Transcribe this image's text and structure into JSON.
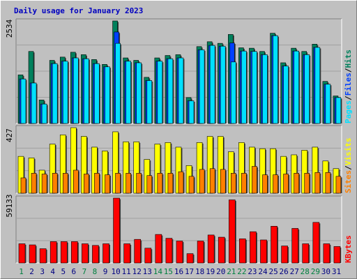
{
  "title": "Daily usage for January 2023",
  "colors": {
    "background": "#c0c0c0",
    "panel": "#c0c0c0",
    "title": "#0000c0",
    "hits": "#00805c",
    "files": "#0040ff",
    "pages": "#00e0ff",
    "visits": "#ffff00",
    "sites": "#ff8000",
    "kbytes": "#ff0000",
    "weekend": "#008040",
    "weekday": "#000080",
    "separator": "#000000"
  },
  "chart_data": [
    {
      "type": "bar",
      "panel": "hits-files-pages",
      "y_max_label": "2534",
      "ylim": [
        0,
        2534
      ],
      "legend": [
        {
          "label": "Pages",
          "color": "#00e0ff"
        },
        {
          "label": "/",
          "color": "#000000"
        },
        {
          "label": "Files",
          "color": "#0040ff"
        },
        {
          "label": "/",
          "color": "#000000"
        },
        {
          "label": "Hits",
          "color": "#00805c"
        }
      ],
      "categories": [
        1,
        2,
        3,
        4,
        5,
        6,
        7,
        8,
        9,
        10,
        11,
        12,
        13,
        14,
        15,
        16,
        17,
        18,
        19,
        20,
        21,
        22,
        23,
        24,
        25,
        26,
        27,
        28,
        29,
        30,
        31
      ],
      "series": [
        {
          "name": "Hits",
          "values": [
            1200,
            1780,
            580,
            1560,
            1640,
            1760,
            1700,
            1580,
            1460,
            2534,
            1620,
            1560,
            1140,
            1620,
            1680,
            1700,
            640,
            1900,
            2020,
            1980,
            2200,
            1870,
            1860,
            1780,
            2230,
            1500,
            1860,
            1780,
            1960,
            1040,
            680
          ]
        },
        {
          "name": "Files",
          "values": [
            1100,
            1000,
            480,
            1480,
            1540,
            1620,
            1600,
            1480,
            1400,
            2260,
            1540,
            1500,
            1060,
            1540,
            1600,
            1620,
            560,
            1820,
            1930,
            1910,
            1990,
            1790,
            1780,
            1700,
            2170,
            1420,
            1790,
            1700,
            1880,
            970,
            640
          ]
        },
        {
          "name": "Pages",
          "values": [
            1100,
            1000,
            480,
            1480,
            1540,
            1620,
            1600,
            1480,
            1400,
            1980,
            1540,
            1500,
            1060,
            1540,
            1600,
            1620,
            560,
            1820,
            1930,
            1910,
            1520,
            1790,
            1780,
            1700,
            2170,
            1420,
            1790,
            1700,
            1880,
            970,
            640
          ]
        }
      ]
    },
    {
      "type": "bar",
      "panel": "visits-sites",
      "y_max_label": "427",
      "ylim": [
        0,
        427
      ],
      "legend": [
        {
          "label": "Sites",
          "color": "#ff8000"
        },
        {
          "label": "/",
          "color": "#000000"
        },
        {
          "label": "Visits",
          "color": "#ffff00"
        }
      ],
      "categories": [
        1,
        2,
        3,
        4,
        5,
        6,
        7,
        8,
        9,
        10,
        11,
        12,
        13,
        14,
        15,
        16,
        17,
        18,
        19,
        20,
        21,
        22,
        23,
        24,
        25,
        26,
        27,
        28,
        29,
        30,
        31
      ],
      "series": [
        {
          "name": "Visits",
          "values": [
            240,
            230,
            150,
            320,
            380,
            427,
            370,
            300,
            275,
            400,
            335,
            335,
            220,
            320,
            330,
            300,
            180,
            330,
            370,
            370,
            270,
            330,
            300,
            290,
            290,
            240,
            250,
            280,
            300,
            210,
            160
          ]
        },
        {
          "name": "Sites",
          "values": [
            100,
            130,
            125,
            130,
            130,
            150,
            125,
            130,
            120,
            130,
            130,
            130,
            115,
            130,
            130,
            140,
            110,
            155,
            160,
            155,
            130,
            130,
            175,
            120,
            120,
            125,
            130,
            130,
            135,
            135,
            110
          ]
        }
      ]
    },
    {
      "type": "bar",
      "panel": "kbytes",
      "y_max_label": "59133",
      "ylim": [
        0,
        59133
      ],
      "legend": [
        {
          "label": "KBytes",
          "color": "#ff0000"
        }
      ],
      "categories": [
        1,
        2,
        3,
        4,
        5,
        6,
        7,
        8,
        9,
        10,
        11,
        12,
        13,
        14,
        15,
        16,
        17,
        18,
        19,
        20,
        21,
        22,
        23,
        24,
        25,
        26,
        27,
        28,
        29,
        30,
        31
      ],
      "series": [
        {
          "name": "KBytes",
          "values": [
            17500,
            16500,
            13000,
            19500,
            19500,
            19500,
            17500,
            16000,
            17500,
            59133,
            17500,
            21500,
            13500,
            26000,
            22500,
            20000,
            8500,
            20000,
            25500,
            23500,
            57500,
            22000,
            28500,
            21000,
            33500,
            15500,
            31500,
            17500,
            37000,
            17500,
            15000
          ]
        }
      ]
    }
  ]
}
